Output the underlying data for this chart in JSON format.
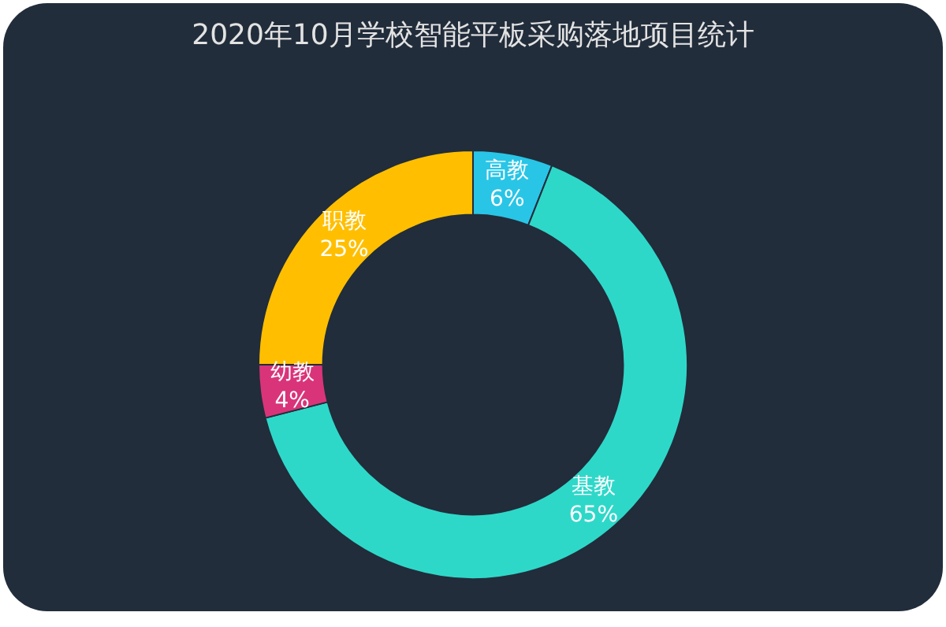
{
  "chart_data": {
    "type": "donut",
    "title": "2020年10月学校智能平板采购落地项目统计",
    "categories": [
      "高教",
      "基教",
      "幼教",
      "职教"
    ],
    "values": [
      6,
      65,
      4,
      25
    ],
    "value_labels": [
      "6%",
      "65%",
      "4%",
      "25%"
    ],
    "colors": [
      "#29c5e6",
      "#2ed8c9",
      "#d9347a",
      "#ffbf00"
    ],
    "legend": false
  }
}
